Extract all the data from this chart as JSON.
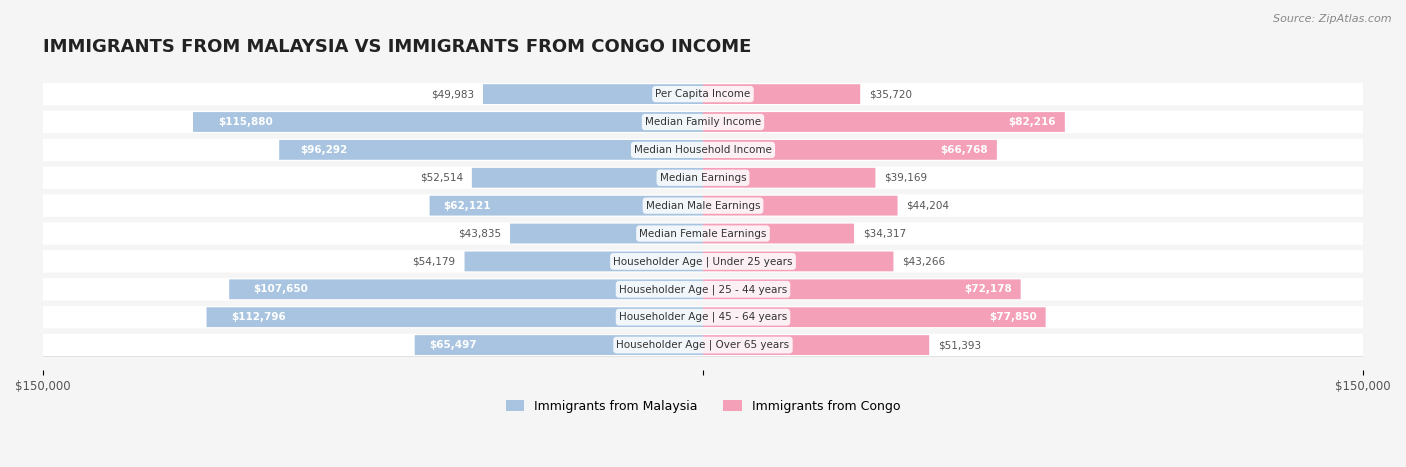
{
  "title": "IMMIGRANTS FROM MALAYSIA VS IMMIGRANTS FROM CONGO INCOME",
  "source": "Source: ZipAtlas.com",
  "categories": [
    "Per Capita Income",
    "Median Family Income",
    "Median Household Income",
    "Median Earnings",
    "Median Male Earnings",
    "Median Female Earnings",
    "Householder Age | Under 25 years",
    "Householder Age | 25 - 44 years",
    "Householder Age | 45 - 64 years",
    "Householder Age | Over 65 years"
  ],
  "malaysia_values": [
    49983,
    115880,
    96292,
    52514,
    62121,
    43835,
    54179,
    107650,
    112796,
    65497
  ],
  "congo_values": [
    35720,
    82216,
    66768,
    39169,
    44204,
    34317,
    43266,
    72178,
    77850,
    51393
  ],
  "malaysia_labels": [
    "$49,983",
    "$115,880",
    "$96,292",
    "$52,514",
    "$62,121",
    "$43,835",
    "$54,179",
    "$107,650",
    "$112,796",
    "$65,497"
  ],
  "congo_labels": [
    "$35,720",
    "$82,216",
    "$66,768",
    "$39,169",
    "$44,204",
    "$34,317",
    "$43,266",
    "$72,178",
    "$77,850",
    "$51,393"
  ],
  "malaysia_color": "#a8c4e0",
  "malaysia_color_dark": "#6fa8d4",
  "congo_color": "#f4a0b8",
  "congo_color_dark": "#e87fa0",
  "max_val": 150000,
  "legend_malaysia": "Immigrants from Malaysia",
  "legend_congo": "Immigrants from Congo",
  "bg_color": "#f5f5f5",
  "row_bg_color": "#ffffff",
  "row_alt_bg": "#f0f0f0"
}
